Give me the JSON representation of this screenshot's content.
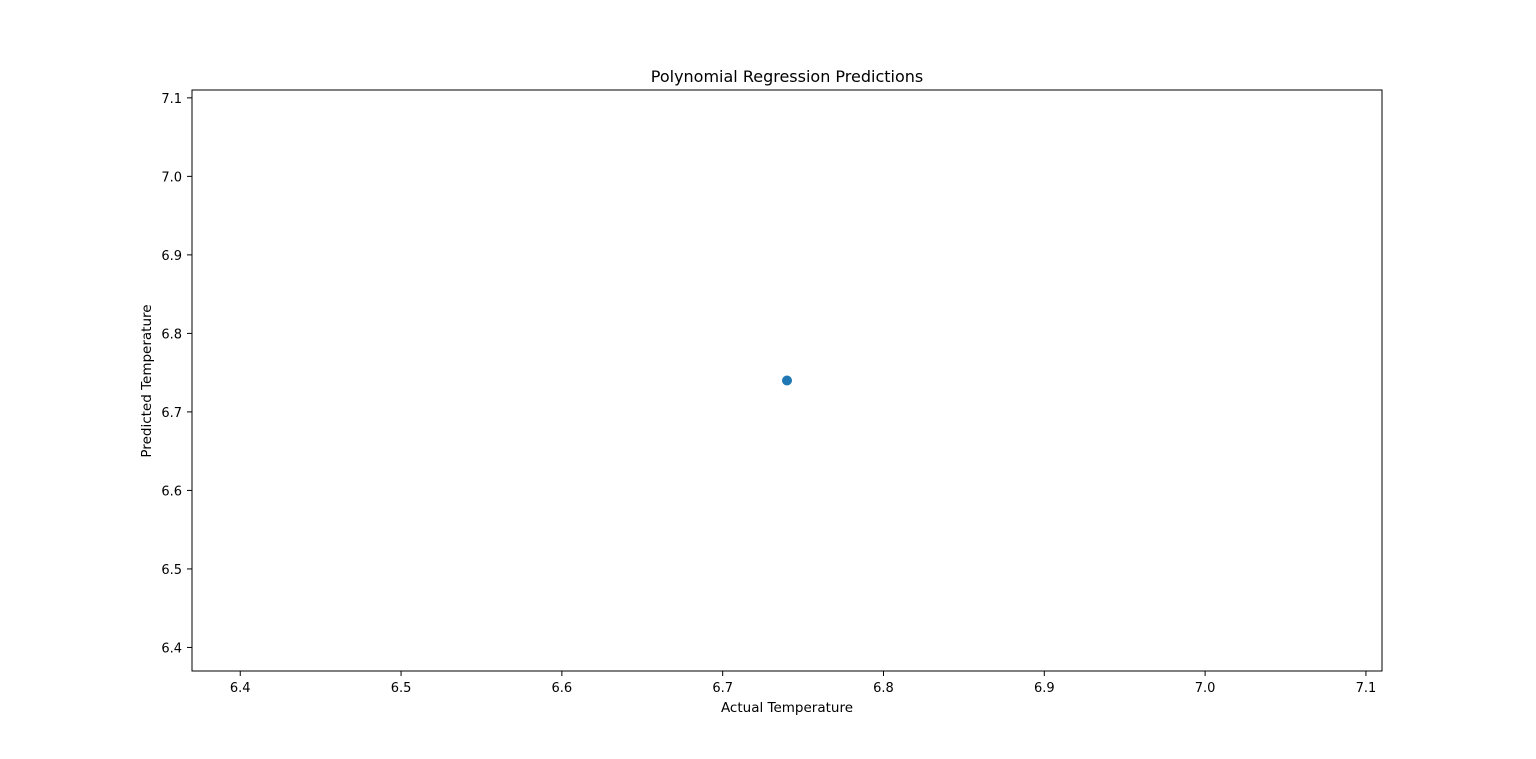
{
  "chart_data": {
    "type": "scatter",
    "title": "Polynomial Regression Predictions",
    "xlabel": "Actual Temperature",
    "ylabel": "Predicted Temperature",
    "xlim": [
      6.37,
      7.11
    ],
    "ylim": [
      6.37,
      7.11
    ],
    "x_ticks": [
      "6.4",
      "6.5",
      "6.6",
      "6.7",
      "6.8",
      "6.9",
      "7.0",
      "7.1"
    ],
    "y_ticks": [
      "6.4",
      "6.5",
      "6.6",
      "6.7",
      "6.8",
      "6.9",
      "7.0",
      "7.1"
    ],
    "grid": false,
    "series": [
      {
        "color": "#1f77b4",
        "points": [
          {
            "x": 6.74,
            "y": 6.74
          }
        ]
      }
    ]
  }
}
